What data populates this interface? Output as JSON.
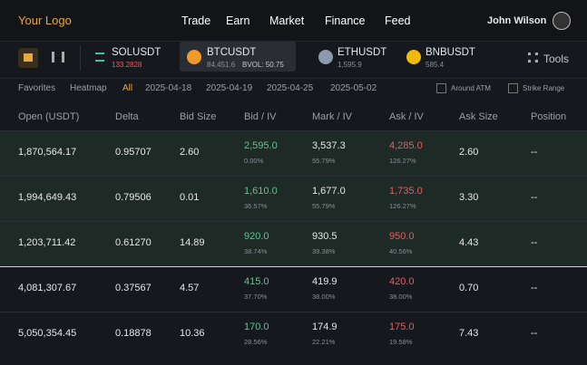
{
  "header": {
    "logo": "Your Logo",
    "nav": [
      "Trade",
      "Earn",
      "Market",
      "Finance",
      "Feed"
    ],
    "user": "John Wilson"
  },
  "tickers": [
    {
      "symbol": "SOLUSDT",
      "price": "133.2828"
    },
    {
      "symbol": "BTCUSDT",
      "price": "84,451.6",
      "extra": "BVOL: 50.75"
    },
    {
      "symbol": "ETHUSDT",
      "price": "1,595.9"
    },
    {
      "symbol": "BNBUSDT",
      "price": "585.4"
    }
  ],
  "tools": "Tools",
  "filters": [
    "Favorites",
    "Heatmap",
    "All",
    "2025-04-18",
    "2025-04-19",
    "2025-04-25",
    "2025-05-02"
  ],
  "options": [
    "Around ATM",
    "Strike Range"
  ],
  "table": {
    "columns": [
      "Open (USDT)",
      "Delta",
      "Bid Size",
      "Bid / IV",
      "Mark / IV",
      "Ask / IV",
      "Ask Size",
      "Position"
    ],
    "rows": [
      {
        "open": "1,870,564.17",
        "delta": "0.95707",
        "bid_size": "2.60",
        "bid": "2,595.0",
        "bid_iv": "0.00%",
        "mark": "3,537.3",
        "mark_iv": "55.79%",
        "ask": "4,285.0",
        "ask_iv": "126.27%",
        "ask_size": "2.60",
        "position": "--"
      },
      {
        "open": "1,994,649.43",
        "delta": "0.79506",
        "bid_size": "0.01",
        "bid": "1,610.0",
        "bid_iv": "36.57%",
        "mark": "1,677.0",
        "mark_iv": "55.79%",
        "ask": "1,735.0",
        "ask_iv": "126.27%",
        "ask_size": "3.30",
        "position": "--"
      },
      {
        "open": "1,203,711.42",
        "delta": "0.61270",
        "bid_size": "14.89",
        "bid": "920.0",
        "bid_iv": "38.74%",
        "mark": "930.5",
        "mark_iv": "39.38%",
        "ask": "950.0",
        "ask_iv": "40.56%",
        "ask_size": "4.43",
        "position": "--"
      },
      {
        "open": "4,081,307.67",
        "delta": "0.37567",
        "bid_size": "4.57",
        "bid": "415.0",
        "bid_iv": "37.70%",
        "mark": "419.9",
        "mark_iv": "38.00%",
        "ask": "420.0",
        "ask_iv": "38.00%",
        "ask_size": "0.70",
        "position": "--"
      },
      {
        "open": "5,050,354.45",
        "delta": "0.18878",
        "bid_size": "10.36",
        "bid": "170.0",
        "bid_iv": "28.56%",
        "mark": "174.9",
        "mark_iv": "22.21%",
        "ask": "175.0",
        "ask_iv": "19.58%",
        "ask_size": "7.43",
        "position": "--"
      }
    ]
  }
}
